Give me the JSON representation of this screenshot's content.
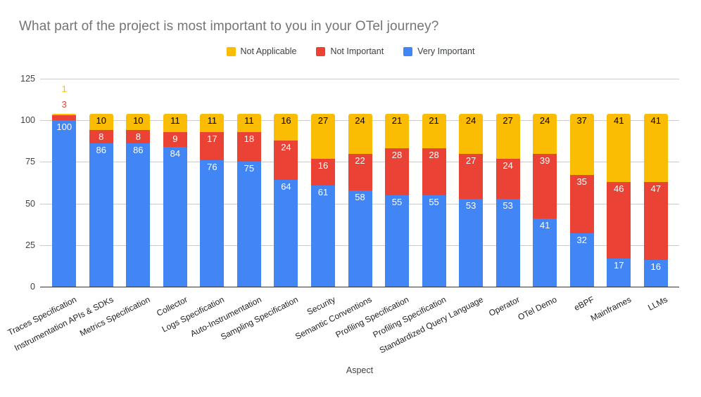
{
  "title": "What part of the project is most important to you in your OTel journey?",
  "legend": {
    "items": [
      {
        "label": "Not Applicable",
        "color": "#FBBC04"
      },
      {
        "label": "Not Important",
        "color": "#EA4335"
      },
      {
        "label": "Very Important",
        "color": "#4285F4"
      }
    ]
  },
  "chart_data": {
    "type": "bar",
    "stacked": true,
    "title": "What part of the project is most important to you in your OTel journey?",
    "xlabel": "Aspect",
    "ylabel": "",
    "ylim": [
      0,
      125
    ],
    "yticks": [
      0,
      25,
      50,
      75,
      100,
      125
    ],
    "grid": true,
    "legend_position": "top",
    "categories": [
      "Traces Specification",
      "Instrumentation APIs & SDKs",
      "Metrics Specification",
      "Collector",
      "Logs Specification",
      "Auto-Instrumentation",
      "Sampling Specification",
      "Security",
      "Semantic Conventions",
      "Profiling Specification",
      "Profiling Specification",
      "Standardized Query Language",
      "Operator",
      "OTel Demo",
      "eBPF",
      "Mainframes",
      "LLMs"
    ],
    "series": [
      {
        "name": "Very Important",
        "color": "#4285F4",
        "label_color": "#ffffff",
        "values": [
          100,
          86,
          86,
          84,
          76,
          75,
          64,
          61,
          58,
          55,
          55,
          53,
          53,
          41,
          32,
          17,
          16
        ]
      },
      {
        "name": "Not Important",
        "color": "#EA4335",
        "label_color": "#ffffff",
        "values": [
          3,
          8,
          8,
          9,
          17,
          18,
          24,
          16,
          22,
          28,
          28,
          27,
          24,
          39,
          35,
          46,
          47
        ]
      },
      {
        "name": "Not Applicable",
        "color": "#FBBC04",
        "label_color": "#000000",
        "values": [
          1,
          10,
          10,
          11,
          11,
          11,
          16,
          27,
          24,
          21,
          21,
          24,
          27,
          24,
          37,
          41,
          41
        ]
      }
    ]
  }
}
